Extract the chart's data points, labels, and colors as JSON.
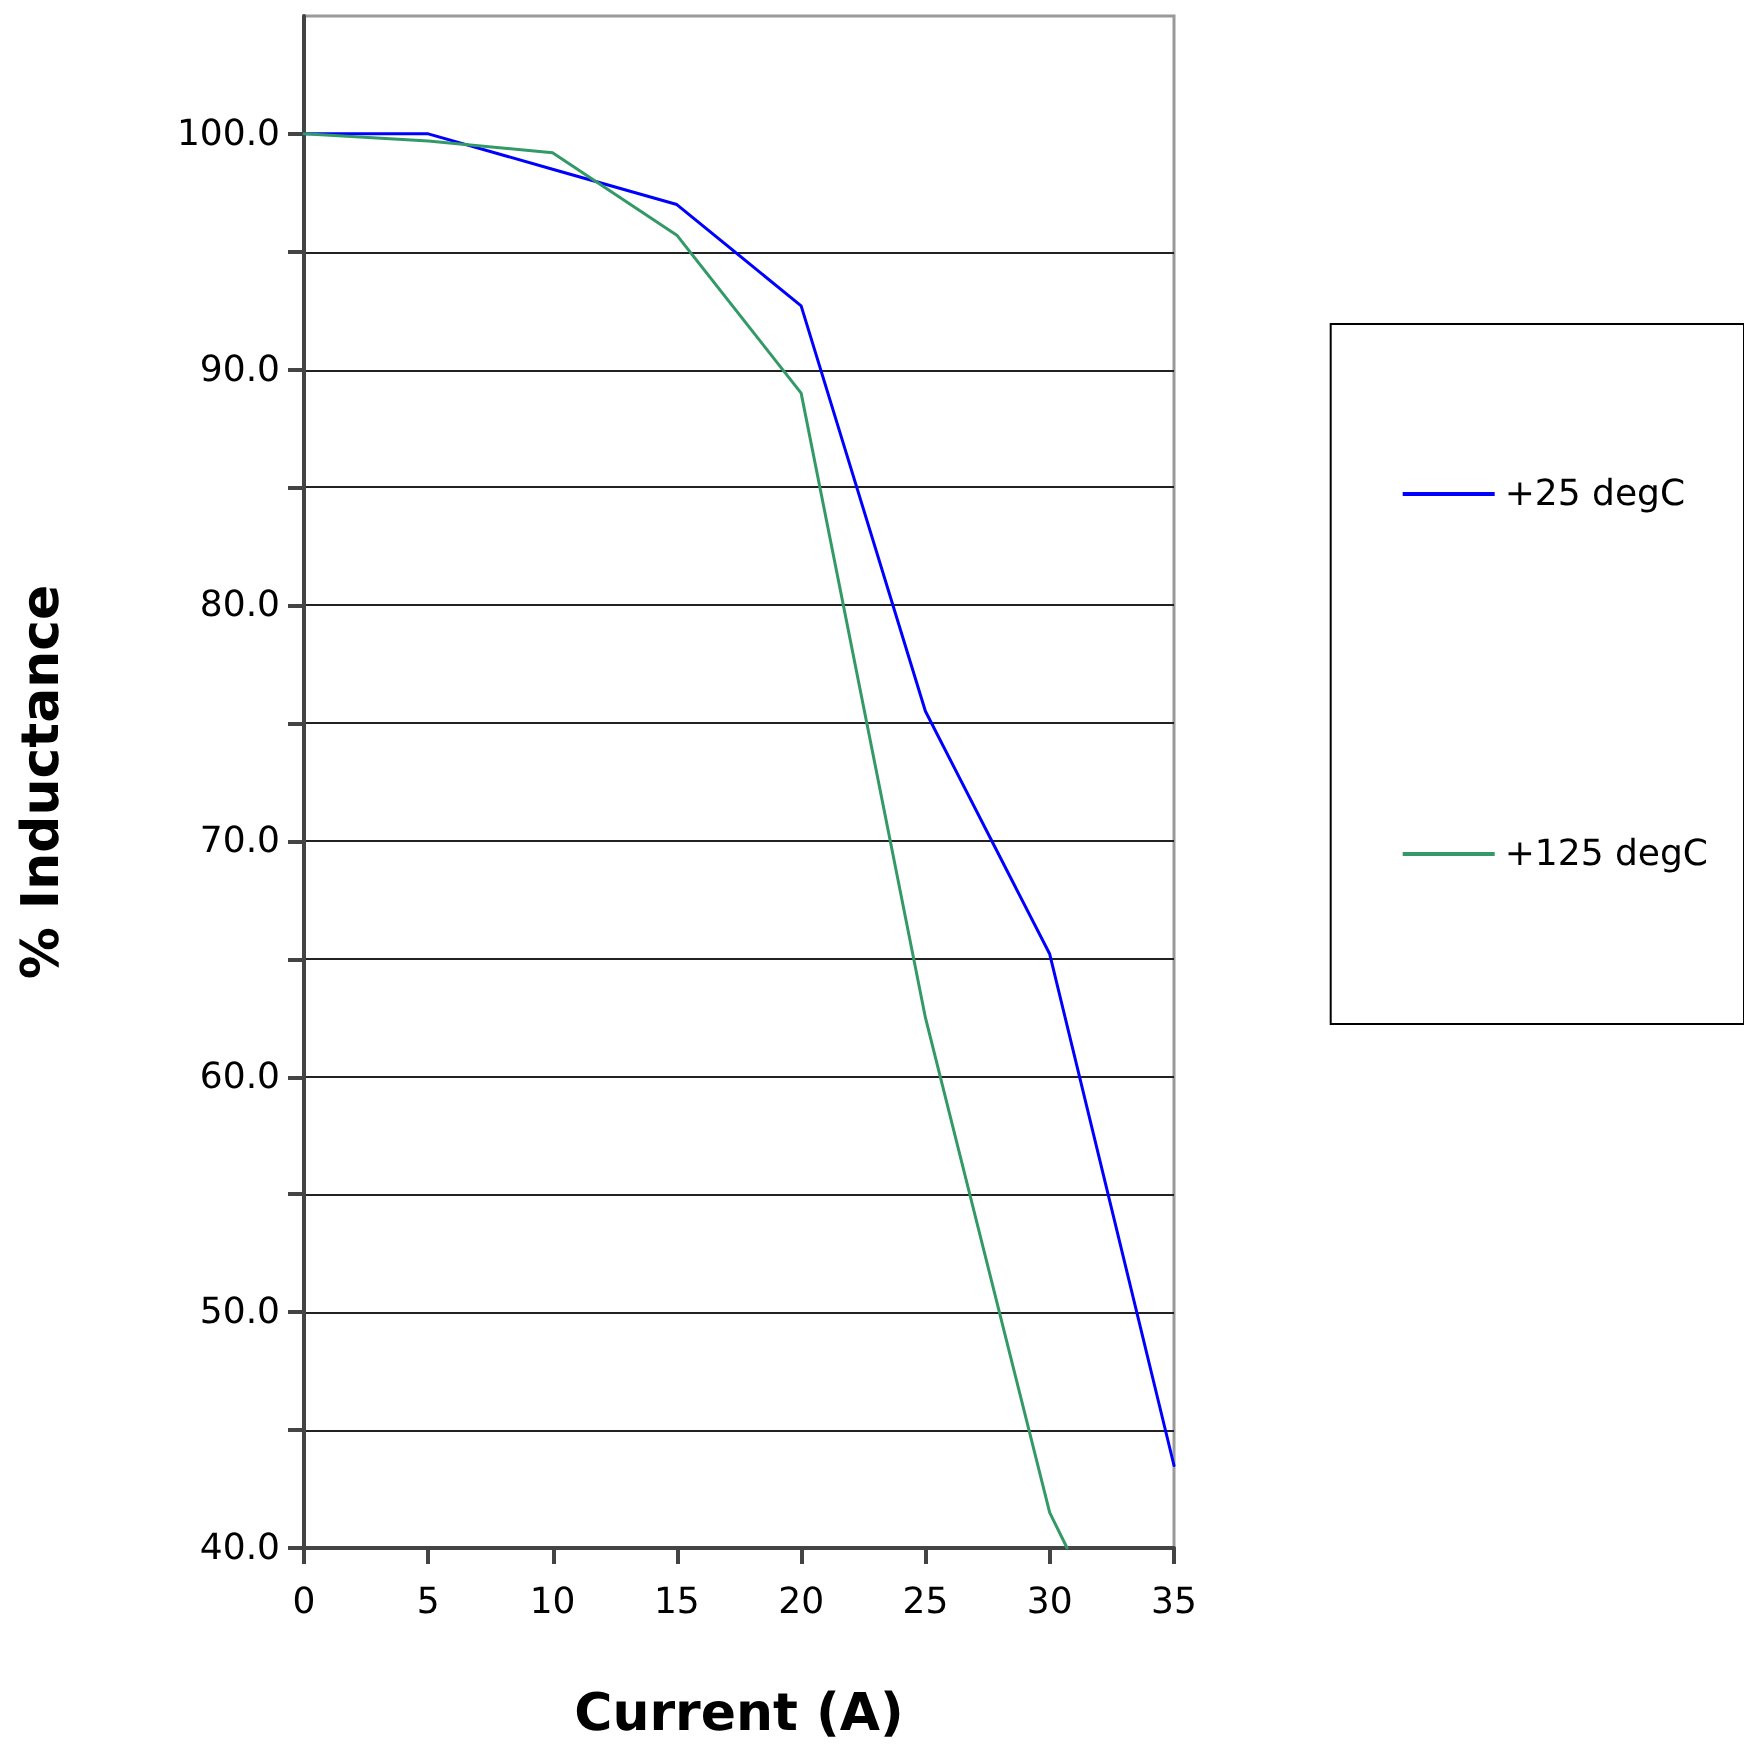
{
  "chart_data": {
    "type": "line",
    "xlabel": "Current (A)",
    "ylabel": "% Inductance",
    "x": [
      0,
      5,
      10,
      15,
      20,
      25,
      30,
      35
    ],
    "series": [
      {
        "name": "+25 degC",
        "color": "#0000ff",
        "values": [
          100,
          100,
          98.5,
          97.0,
          92.7,
          75.5,
          65.2,
          43.5
        ]
      },
      {
        "name": "+125 degC",
        "color": "#339966",
        "x": [
          0,
          5,
          10,
          15,
          20,
          25,
          30,
          30.7
        ],
        "values": [
          100,
          99.7,
          99.2,
          95.7,
          89.0,
          62.5,
          41.5,
          40
        ]
      }
    ],
    "xlim": [
      0,
      35
    ],
    "xticks": [
      0,
      5,
      10,
      15,
      20,
      25,
      30,
      35
    ],
    "ylim": [
      40,
      105
    ],
    "yticks": [
      {
        "value": 40,
        "label": "40.0"
      },
      {
        "value": 45,
        "label": null
      },
      {
        "value": 50,
        "label": "50.0"
      },
      {
        "value": 55,
        "label": null
      },
      {
        "value": 60,
        "label": "60.0"
      },
      {
        "value": 65,
        "label": null
      },
      {
        "value": 70,
        "label": "70.0"
      },
      {
        "value": 75,
        "label": null
      },
      {
        "value": 80,
        "label": "80.0"
      },
      {
        "value": 85,
        "label": null
      },
      {
        "value": 90,
        "label": "90.0"
      },
      {
        "value": 95,
        "label": null
      },
      {
        "value": 100,
        "label": "100.0"
      }
    ],
    "grid": "y",
    "legend": "right",
    "marker": "none",
    "line_style": "solid"
  }
}
